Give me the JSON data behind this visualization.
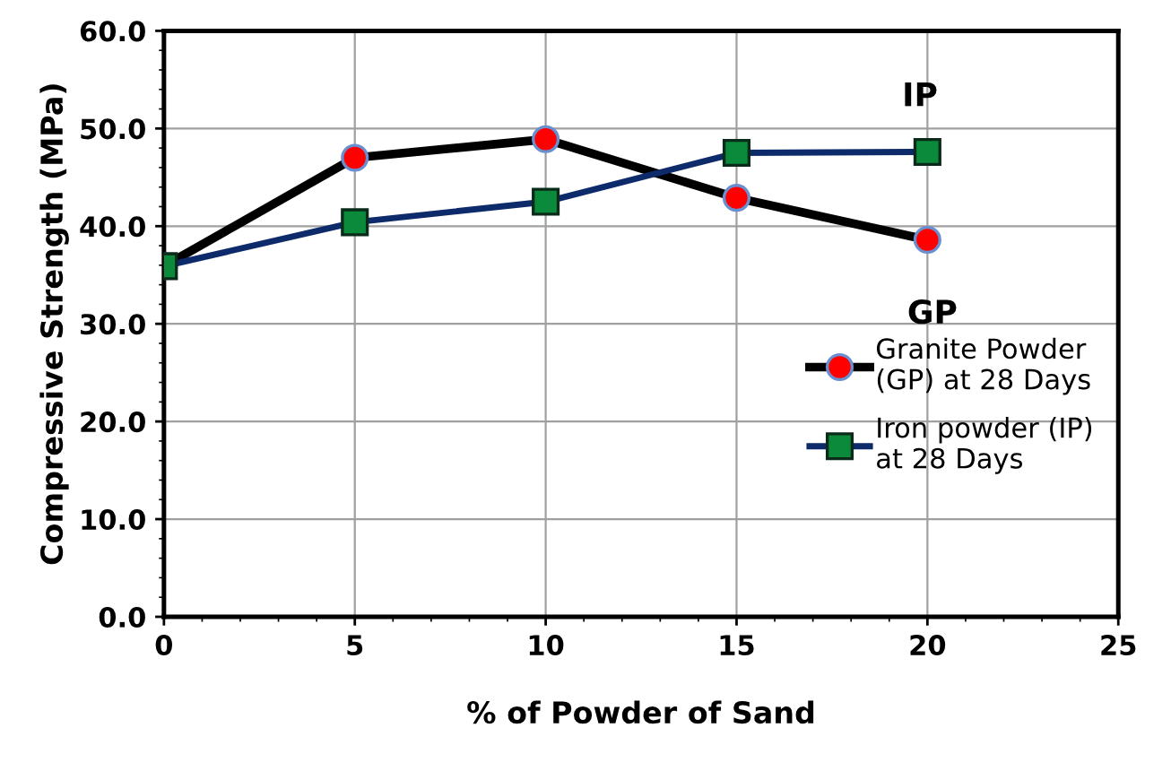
{
  "chart_data": {
    "type": "line",
    "xlabel": "% of Powder of Sand",
    "ylabel": "Compressive Strength (MPa)",
    "x": [
      0,
      5,
      10,
      15,
      20
    ],
    "series": [
      {
        "name": "Granite Powder\n(GP) at 28 Days",
        "color": "#000000",
        "marker": "circle",
        "values": [
          35.9,
          47.0,
          48.9,
          42.9,
          38.6
        ]
      },
      {
        "name": "Iron powder (IP)\nat 28 Days",
        "color": "#0d2a6b",
        "marker": "square",
        "values": [
          35.9,
          40.4,
          42.5,
          47.5,
          47.6
        ]
      }
    ],
    "xlim": [
      0,
      25
    ],
    "xticks": [
      0,
      5,
      10,
      15,
      20,
      25
    ],
    "ylim": [
      0,
      60
    ],
    "yticks": [
      {
        "value": 0,
        "label": "0.0"
      },
      {
        "value": 10,
        "label": "10.0"
      },
      {
        "value": 20,
        "label": "20.0"
      },
      {
        "value": 30,
        "label": "30.0"
      },
      {
        "value": 40,
        "label": "40.0"
      },
      {
        "value": 50,
        "label": "50.0"
      },
      {
        "value": 60,
        "label": "60.0"
      }
    ],
    "annotations": [
      "IP",
      "GP"
    ],
    "grid": true,
    "legend": "right",
    "line_style": "solid"
  }
}
